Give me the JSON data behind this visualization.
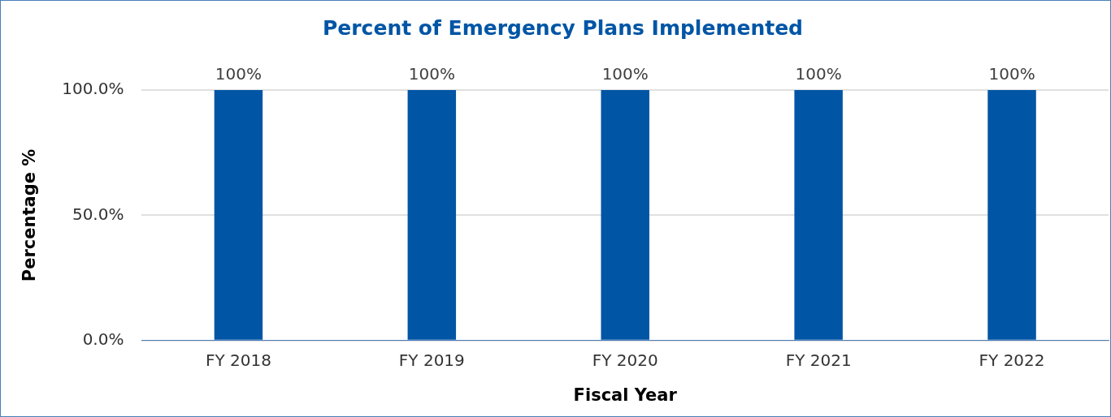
{
  "chart_data": {
    "type": "bar",
    "title": "Percent of Emergency Plans Implemented",
    "xlabel": "Fiscal Year",
    "ylabel": "Percentage %",
    "categories": [
      "FY 2018",
      "FY 2019",
      "FY 2020",
      "FY 2021",
      "FY 2022"
    ],
    "values": [
      100,
      100,
      100,
      100,
      100
    ],
    "value_labels": [
      "100%",
      "100%",
      "100%",
      "100%",
      "100%"
    ],
    "color": "#0055a5",
    "ylim": [
      0,
      100
    ],
    "yticks": [
      {
        "value": 0,
        "label": "0.0%"
      },
      {
        "value": 50,
        "label": "50.0%"
      },
      {
        "value": 100,
        "label": "100.0%"
      }
    ],
    "grid": "y",
    "legend": false
  }
}
